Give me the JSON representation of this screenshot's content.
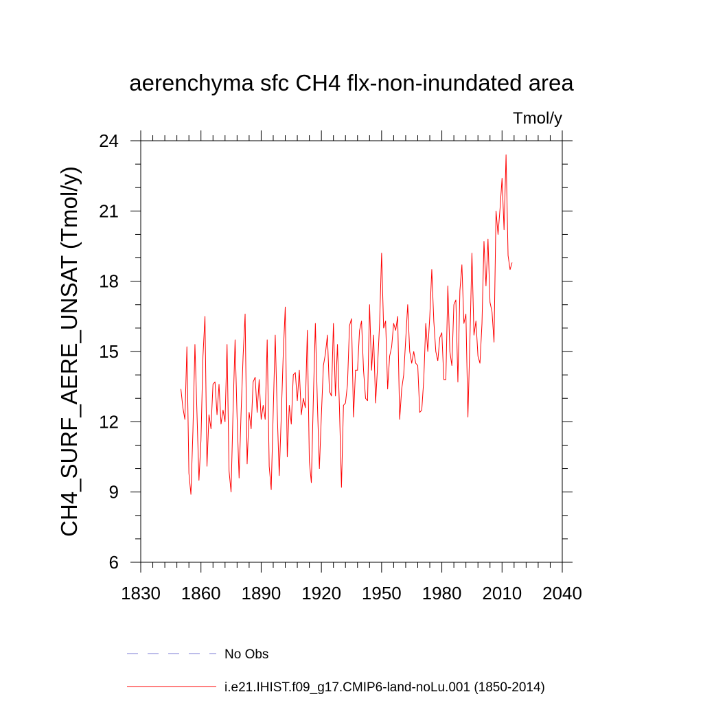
{
  "chart_data": {
    "type": "line",
    "title": "aerenchyma sfc CH4 flx-non-inundated area",
    "units": "Tmol/y",
    "ylabel": "CH4_SURF_AERE_UNSAT  (Tmol/y)",
    "xlabel": "",
    "xlim": [
      1830,
      2040
    ],
    "ylim": [
      6,
      24
    ],
    "xticks": [
      1830,
      1860,
      1890,
      1920,
      1950,
      1980,
      2010,
      2040
    ],
    "yticks": [
      6,
      9,
      12,
      15,
      18,
      21,
      24
    ],
    "grid": false,
    "legend_placement": "bottom",
    "legend": [
      {
        "label": "No Obs",
        "style": "dashed",
        "color": "#7b7bd6"
      },
      {
        "label": "i.e21.IHIST.f09_g17.CMIP6-land-noLu.001 (1850-2014)",
        "style": "solid",
        "color": "#ff0000"
      }
    ],
    "series": [
      {
        "name": "i.e21.IHIST.f09_g17.CMIP6-land-noLu.001 (1850-2014)",
        "color": "#ff0000",
        "x_start": 1850,
        "x_step": 1,
        "values": [
          13.4,
          12.6,
          12.1,
          15.2,
          9.8,
          8.9,
          11.6,
          15.3,
          12.4,
          9.5,
          11.2,
          14.8,
          16.5,
          10.1,
          12.3,
          11.7,
          13.6,
          13.7,
          12.3,
          13.6,
          11.9,
          12.5,
          12.0,
          15.3,
          9.9,
          9.0,
          12.5,
          15.5,
          12.2,
          9.6,
          12.4,
          14.8,
          16.6,
          10.2,
          12.4,
          11.7,
          13.7,
          13.9,
          12.4,
          13.8,
          12.1,
          12.7,
          12.1,
          15.5,
          10.1,
          9.1,
          12.4,
          15.7,
          12.4,
          9.7,
          12.2,
          14.9,
          16.9,
          10.5,
          12.7,
          11.9,
          14.0,
          14.1,
          12.9,
          14.2,
          12.3,
          13.0,
          12.6,
          15.9,
          10.3,
          9.4,
          13.0,
          16.2,
          12.8,
          10.0,
          12.3,
          14.4,
          14.9,
          15.7,
          13.3,
          13.1,
          16.2,
          13.1,
          15.3,
          12.6,
          9.2,
          12.7,
          12.8,
          13.6,
          16.1,
          16.4,
          12.2,
          14.2,
          14.2,
          15.9,
          16.3,
          14.2,
          13.0,
          12.9,
          17.0,
          14.2,
          15.7,
          12.8,
          14.4,
          16.2,
          19.2,
          16.0,
          16.3,
          13.4,
          14.8,
          15.2,
          16.2,
          15.9,
          16.5,
          12.1,
          13.4,
          14.0,
          15.5,
          17.0,
          15.0,
          14.5,
          15.0,
          14.5,
          14.4,
          12.4,
          12.5,
          13.8,
          16.2,
          15.0,
          16.5,
          18.5,
          16.3,
          15.0,
          14.6,
          15.6,
          15.8,
          13.8,
          13.8,
          17.8,
          15.0,
          14.4,
          17.0,
          17.2,
          13.7,
          17.6,
          18.7,
          16.2,
          16.6,
          12.2,
          15.5,
          19.2,
          15.7,
          16.3,
          14.8,
          14.5,
          16.2,
          19.7,
          17.8,
          19.8,
          17.1,
          16.7,
          15.4,
          21.0,
          20.0,
          21.1,
          22.4,
          20.2,
          23.4,
          19.1,
          18.5,
          18.8
        ]
      }
    ]
  }
}
